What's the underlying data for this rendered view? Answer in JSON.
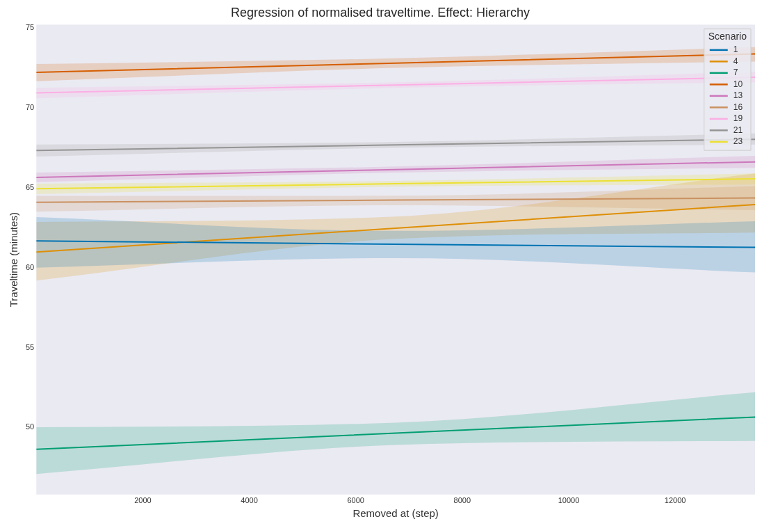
{
  "chart_data": {
    "type": "line",
    "title": "Regression of normalised traveltime. Effect: Hierarchy",
    "xlabel": "Removed at (step)",
    "ylabel": "Traveltime (minutes)",
    "legend_title": "Scenario",
    "xlim": [
      0,
      13500
    ],
    "ylim": [
      45.8,
      75.2
    ],
    "xticks": [
      2000,
      4000,
      6000,
      8000,
      10000,
      12000
    ],
    "yticks": [
      50,
      55,
      60,
      65,
      70,
      75
    ],
    "grid": false,
    "legend": "top right",
    "marker": "none",
    "line_style": "solid",
    "series": [
      {
        "name": "1",
        "color": "#0173b2",
        "x": [
          0,
          6750,
          13500
        ],
        "values": [
          61.67,
          61.47,
          61.27
        ],
        "lower": [
          60.0,
          60.6,
          59.7
        ],
        "upper": [
          63.16,
          62.3,
          62.9
        ]
      },
      {
        "name": "4",
        "color": "#de8f05",
        "x": [
          0,
          6750,
          13500
        ],
        "values": [
          60.98,
          62.47,
          63.95
        ],
        "lower": [
          59.19,
          61.8,
          62.2
        ],
        "upper": [
          62.86,
          63.2,
          65.9
        ]
      },
      {
        "name": "7",
        "color": "#029e73",
        "x": [
          0,
          6750,
          13500
        ],
        "values": [
          48.63,
          49.64,
          50.65
        ],
        "lower": [
          47.09,
          48.9,
          49.16
        ],
        "upper": [
          50.01,
          50.3,
          52.2
        ]
      },
      {
        "name": "10",
        "color": "#d55e00",
        "x": [
          0,
          6750,
          13500
        ],
        "values": [
          72.22,
          72.8,
          73.38
        ],
        "lower": [
          71.67,
          72.5,
          72.9
        ],
        "upper": [
          72.74,
          73.1,
          73.8
        ]
      },
      {
        "name": "13",
        "color": "#cc78bc",
        "x": [
          0,
          6750,
          13500
        ],
        "values": [
          65.65,
          66.14,
          66.62
        ],
        "lower": [
          65.35,
          65.95,
          66.25
        ],
        "upper": [
          65.95,
          66.33,
          67.0
        ]
      },
      {
        "name": "16",
        "color": "#ca9161",
        "x": [
          0,
          6750,
          13500
        ],
        "values": [
          64.09,
          64.23,
          64.36
        ],
        "lower": [
          63.5,
          63.9,
          63.6
        ],
        "upper": [
          64.49,
          64.5,
          65.1
        ]
      },
      {
        "name": "19",
        "color": "#fbafe4",
        "x": [
          0,
          6750,
          13500
        ],
        "values": [
          70.94,
          71.43,
          71.92
        ],
        "lower": [
          70.6,
          71.25,
          71.6
        ],
        "upper": [
          71.25,
          71.6,
          72.25
        ]
      },
      {
        "name": "21",
        "color": "#949494",
        "x": [
          0,
          6750,
          13500
        ],
        "values": [
          67.33,
          67.68,
          68.03
        ],
        "lower": [
          66.95,
          67.5,
          67.7
        ],
        "upper": [
          67.7,
          67.87,
          68.4
        ]
      },
      {
        "name": "23",
        "color": "#ece133",
        "x": [
          0,
          6750,
          13500
        ],
        "values": [
          64.94,
          65.25,
          65.56
        ],
        "lower": [
          64.6,
          65.07,
          65.2
        ],
        "upper": [
          65.25,
          65.43,
          65.9
        ]
      }
    ]
  }
}
